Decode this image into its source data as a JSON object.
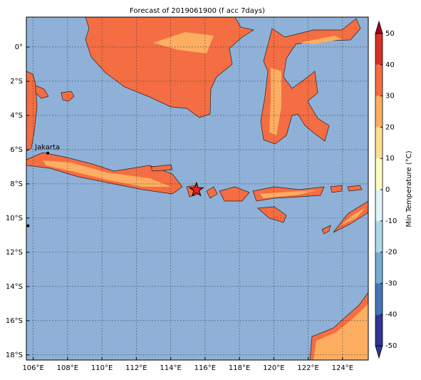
{
  "map": {
    "title": "Forecast of 2019061900 (f acc 7days)",
    "xlim": [
      105.6,
      125.5
    ],
    "ylim": [
      -18.3,
      1.75
    ],
    "xticks": [
      {
        "value": 106,
        "label": "106°E"
      },
      {
        "value": 108,
        "label": "108°E"
      },
      {
        "value": 110,
        "label": "110°E"
      },
      {
        "value": 112,
        "label": "112°E"
      },
      {
        "value": 114,
        "label": "114°E"
      },
      {
        "value": 116,
        "label": "116°E"
      },
      {
        "value": 118,
        "label": "118°E"
      },
      {
        "value": 120,
        "label": "120°E"
      },
      {
        "value": 122,
        "label": "122°E"
      },
      {
        "value": 124,
        "label": "124°E"
      }
    ],
    "yticks": [
      {
        "value": 0,
        "label": "0°"
      },
      {
        "value": -2,
        "label": "2°S"
      },
      {
        "value": -4,
        "label": "4°S"
      },
      {
        "value": -6,
        "label": "6°S"
      },
      {
        "value": -8,
        "label": "8°S"
      },
      {
        "value": -10,
        "label": "10°S"
      },
      {
        "value": -12,
        "label": "12°S"
      },
      {
        "value": -14,
        "label": "14°S"
      },
      {
        "value": -16,
        "label": "16°S"
      },
      {
        "value": -18,
        "label": "18°S"
      }
    ],
    "grid": true,
    "points": [
      {
        "name": "Jakarta",
        "lon": 106.85,
        "lat": -6.2
      },
      {
        "lon": 105.7,
        "lat": -10.45
      }
    ],
    "star": {
      "lon": 115.5,
      "lat": -8.35,
      "color": "#e8231c"
    },
    "colorbar": {
      "label": "Min Temperature (°C)",
      "levels": [
        -50,
        -40,
        -30,
        -20,
        -10,
        0,
        10,
        20,
        30,
        40,
        50
      ],
      "colors": [
        "#313695",
        "#4575b4",
        "#74add1",
        "#abd9e9",
        "#e0f3f8",
        "#ffffbf",
        "#fee090",
        "#fdae61",
        "#f46d43",
        "#d73027",
        "#a50026"
      ],
      "ticks": [
        50,
        40,
        30,
        20,
        10,
        0,
        -10,
        -20,
        -30,
        -40,
        -50
      ]
    }
  }
}
